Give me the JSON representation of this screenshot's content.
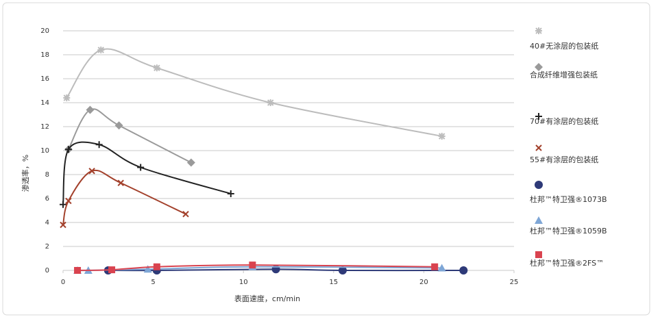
{
  "chart_data": {
    "type": "line",
    "x_label": "表面速度，cm/min",
    "y_label": "渗透率，%",
    "xlim": [
      0,
      25
    ],
    "xticks": [
      0,
      5,
      10,
      15,
      20,
      25
    ],
    "ylim": [
      0,
      20
    ],
    "yticks": [
      0,
      2,
      4,
      6,
      8,
      10,
      12,
      14,
      16,
      18,
      20
    ],
    "grid": true,
    "legend": "right",
    "series": [
      {
        "name": "40#无涂层的包装纸",
        "color": "#bcbcbc",
        "marker": "asterisk",
        "x": [
          0.2,
          2.1,
          5.2,
          11.5,
          21.0
        ],
        "values": [
          14.4,
          18.4,
          16.9,
          14.0,
          11.2
        ]
      },
      {
        "name": "合成纤维增强包装纸",
        "color": "#9a9a9a",
        "marker": "diamond",
        "x": [
          0.3,
          1.5,
          3.1,
          7.1
        ],
        "values": [
          10.1,
          13.4,
          12.1,
          9.0
        ]
      },
      {
        "name": "70#有涂层的包装纸",
        "color": "#222222",
        "marker": "plus",
        "x": [
          0,
          0.3,
          2.0,
          4.3,
          9.3
        ],
        "values": [
          5.5,
          10.1,
          10.5,
          8.6,
          6.4
        ]
      },
      {
        "name": "55#有涂层的包装纸",
        "color": "#a3412c",
        "marker": "cross",
        "x": [
          0,
          0.3,
          1.6,
          3.2,
          6.8
        ],
        "values": [
          3.8,
          5.8,
          8.3,
          7.3,
          4.7
        ]
      },
      {
        "name": "杜邦™特卫强®1073B",
        "color": "#2e3a78",
        "marker": "circle",
        "x": [
          2.5,
          5.2,
          11.8,
          15.5,
          22.2
        ],
        "values": [
          0,
          0,
          0.1,
          0,
          0
        ]
      },
      {
        "name": "杜邦™特卫强®1059B",
        "color": "#7ea6d6",
        "marker": "triangle",
        "x": [
          0.8,
          1.4,
          4.7,
          10.5,
          21.0
        ],
        "values": [
          0,
          0,
          0.1,
          0.3,
          0.2
        ]
      },
      {
        "name": "杜邦™特卫强®2FS™",
        "color": "#d9434f",
        "marker": "square",
        "x": [
          0.8,
          2.7,
          5.2,
          10.5,
          20.6
        ],
        "values": [
          0,
          0.05,
          0.3,
          0.45,
          0.3
        ]
      }
    ]
  }
}
